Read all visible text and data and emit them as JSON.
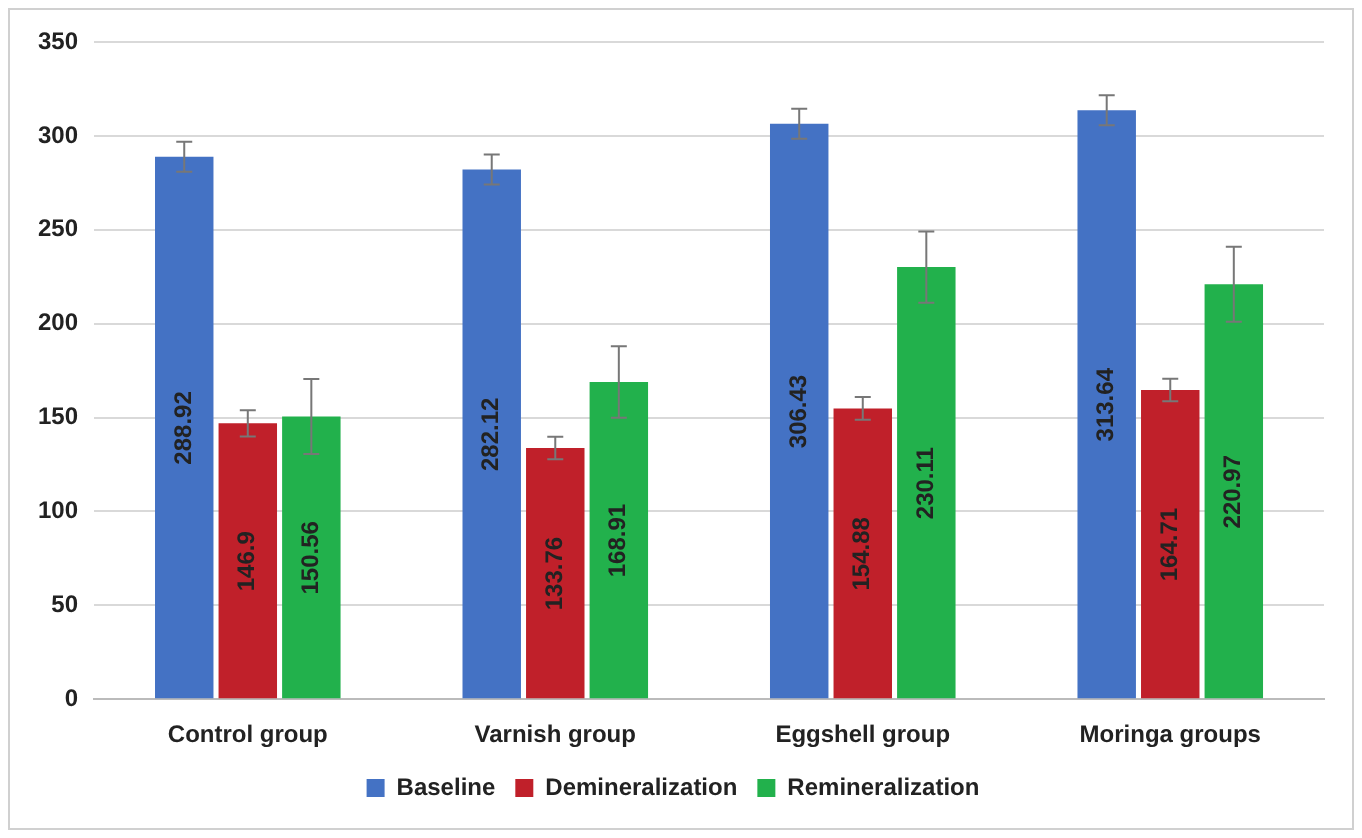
{
  "chart_data": {
    "type": "bar",
    "categories": [
      "Control group",
      "Varnish group",
      "Eggshell group",
      "Moringa groups"
    ],
    "series": [
      {
        "name": "Baseline",
        "color": "#4472c4",
        "values": [
          288.92,
          282.12,
          306.43,
          313.64
        ],
        "errors": [
          8,
          8,
          8,
          8
        ]
      },
      {
        "name": "Demineralization",
        "color": "#c0202a",
        "values": [
          146.9,
          133.76,
          154.88,
          164.71
        ],
        "errors": [
          7,
          6,
          6,
          6
        ]
      },
      {
        "name": "Remineralization",
        "color": "#22b14c",
        "values": [
          150.56,
          168.91,
          230.11,
          220.97
        ],
        "errors": [
          20,
          19,
          19,
          20
        ]
      }
    ],
    "ylim": [
      0,
      350
    ],
    "yticks": [
      0,
      50,
      100,
      150,
      200,
      250,
      300,
      350
    ],
    "grid": "y",
    "legend": "bottom",
    "data_labels": true
  }
}
